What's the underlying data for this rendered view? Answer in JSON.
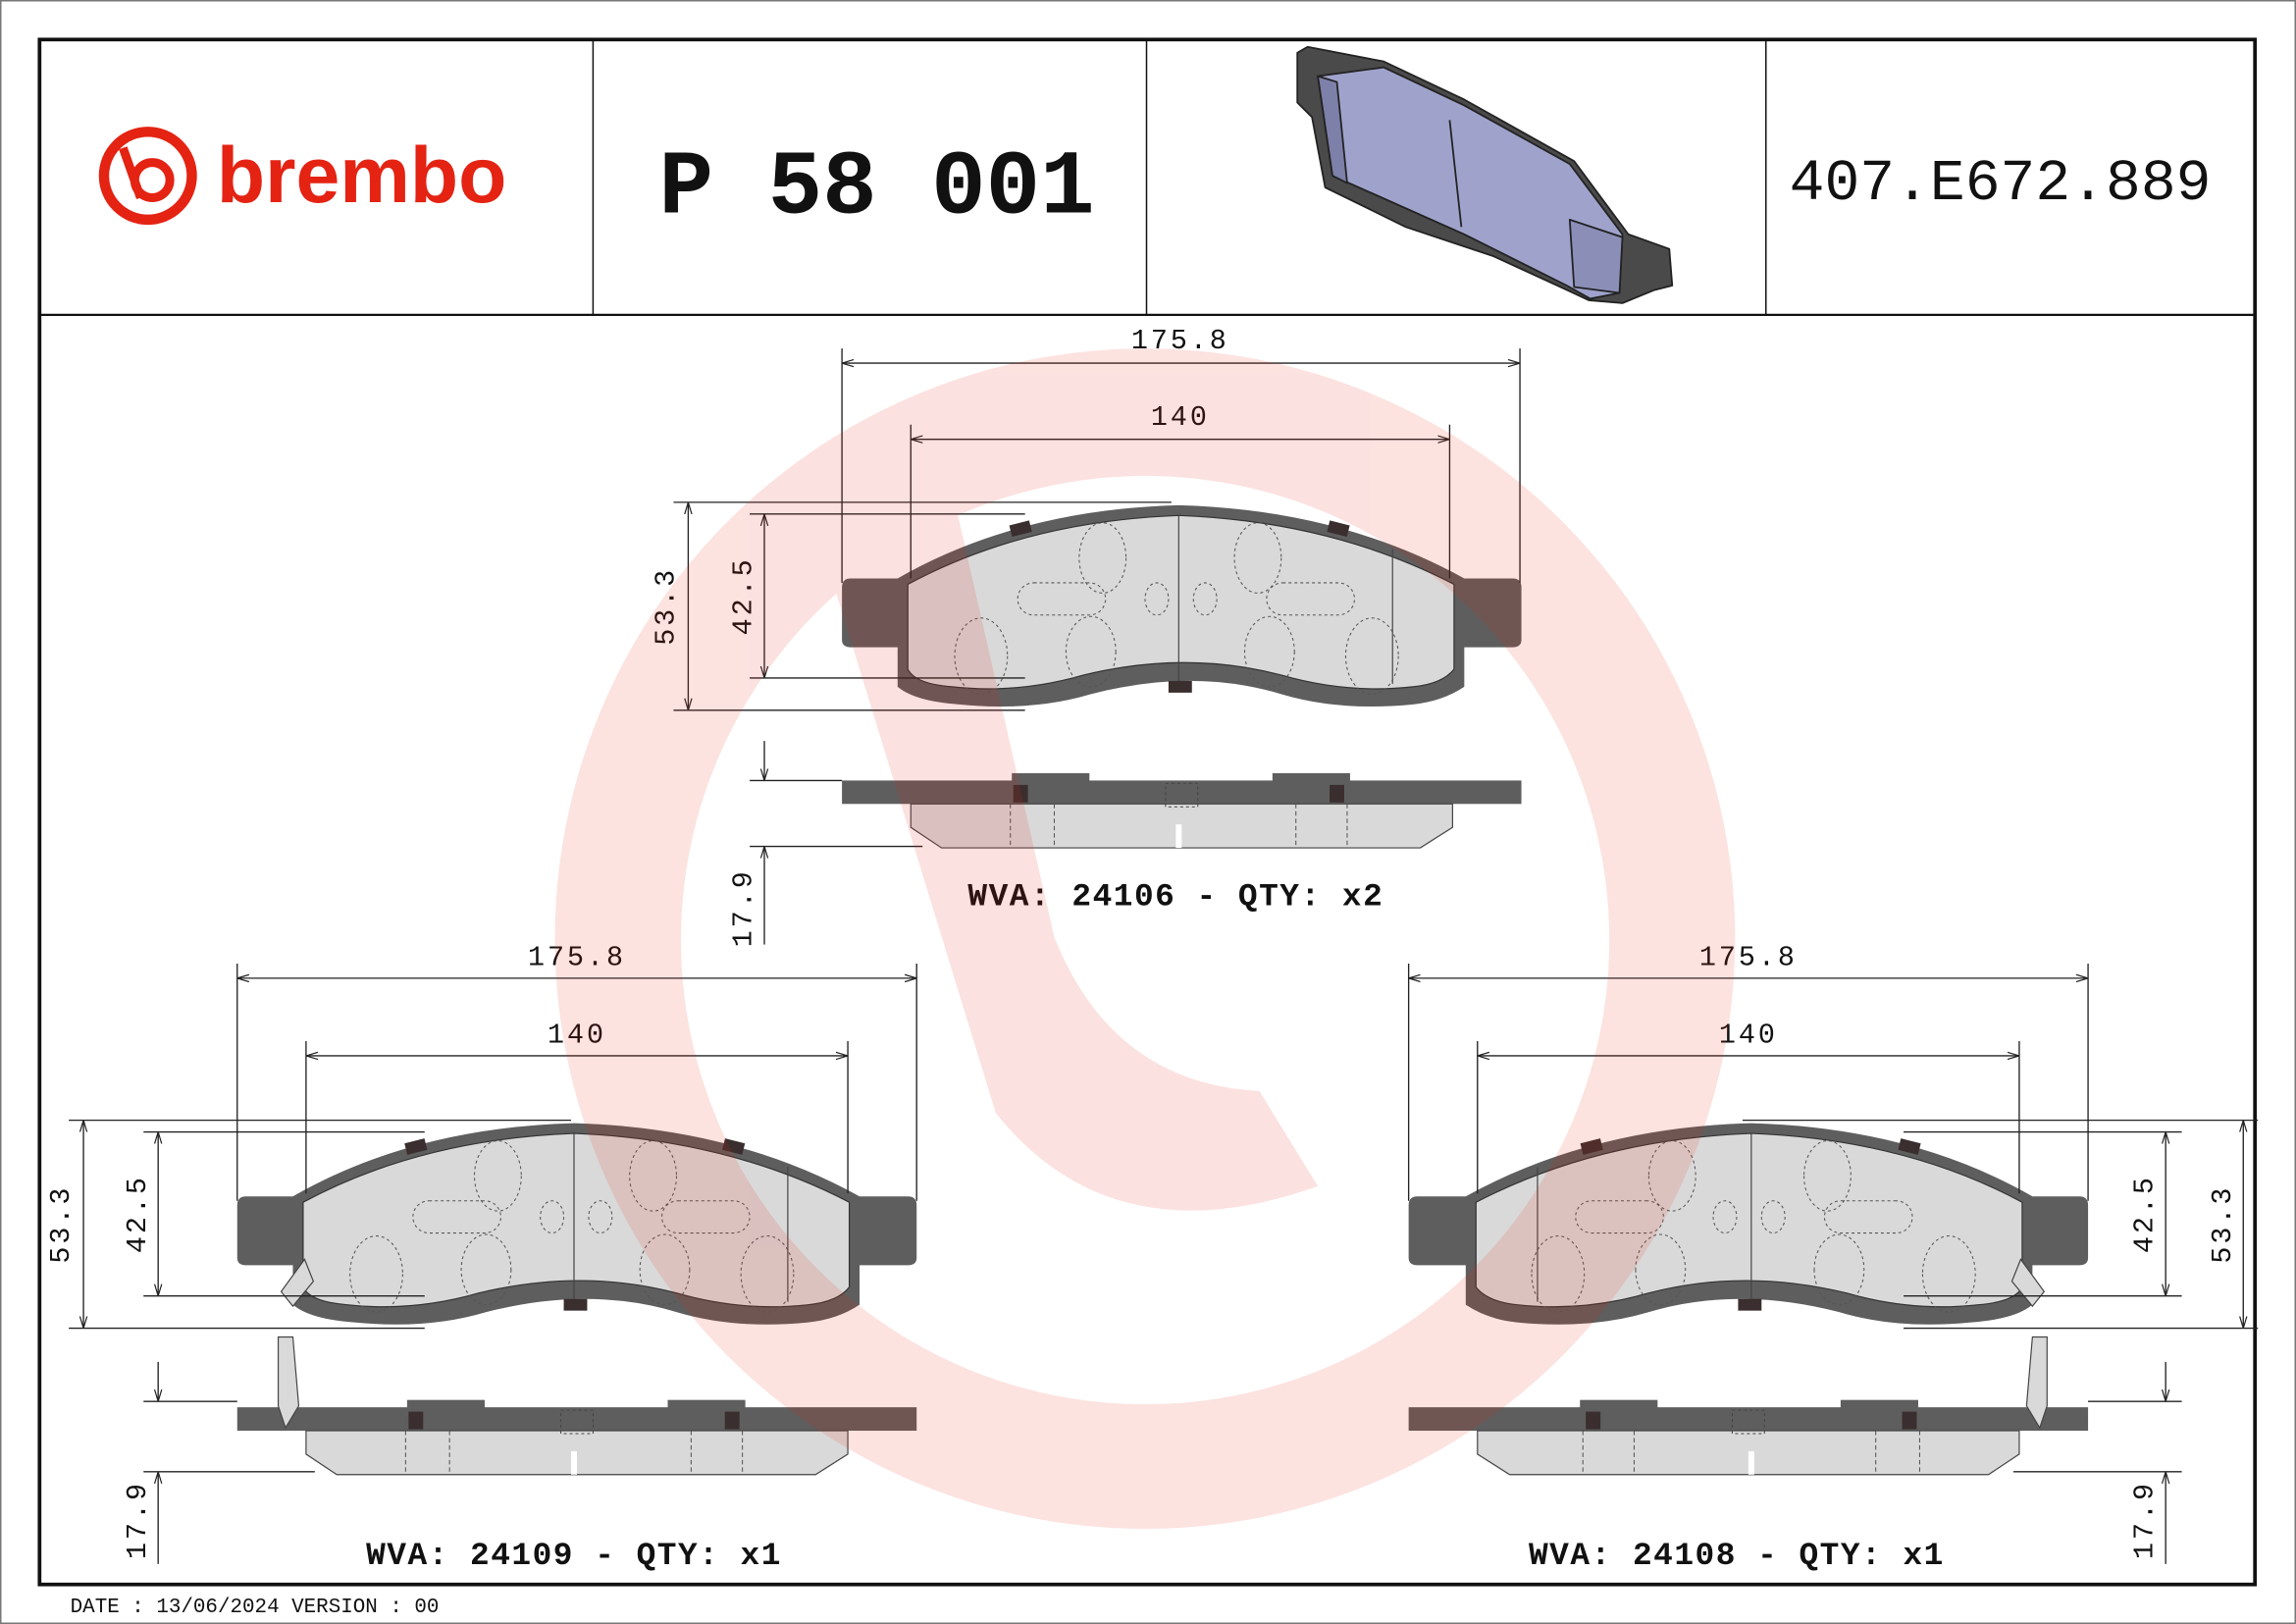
{
  "header": {
    "brand": "brembo",
    "part_number": "P 58 001",
    "reference_code": "407.E672.889"
  },
  "colors": {
    "brand_red": "#e42313",
    "backing_plate": "#5e5e5e",
    "friction_material": "#d9d9d9",
    "iso_pad_blue": "#9fa3cc"
  },
  "views": [
    {
      "overall_width": "175.8",
      "friction_width": "140",
      "overall_height": "53.3",
      "friction_height": "42.5",
      "thickness": "17.9",
      "label": "WVA: 24106 - QTY: x2"
    },
    {
      "overall_width": "175.8",
      "friction_width": "140",
      "overall_height": "53.3",
      "friction_height": "42.5",
      "thickness": "17.9",
      "label": "WVA: 24109 - QTY: x1"
    },
    {
      "overall_width": "175.8",
      "friction_width": "140",
      "overall_height": "53.3",
      "friction_height": "42.5",
      "thickness": "17.9",
      "label": "WVA: 24108 - QTY: x1"
    }
  ],
  "footer": "DATE : 13/06/2024 VERSION : 00"
}
